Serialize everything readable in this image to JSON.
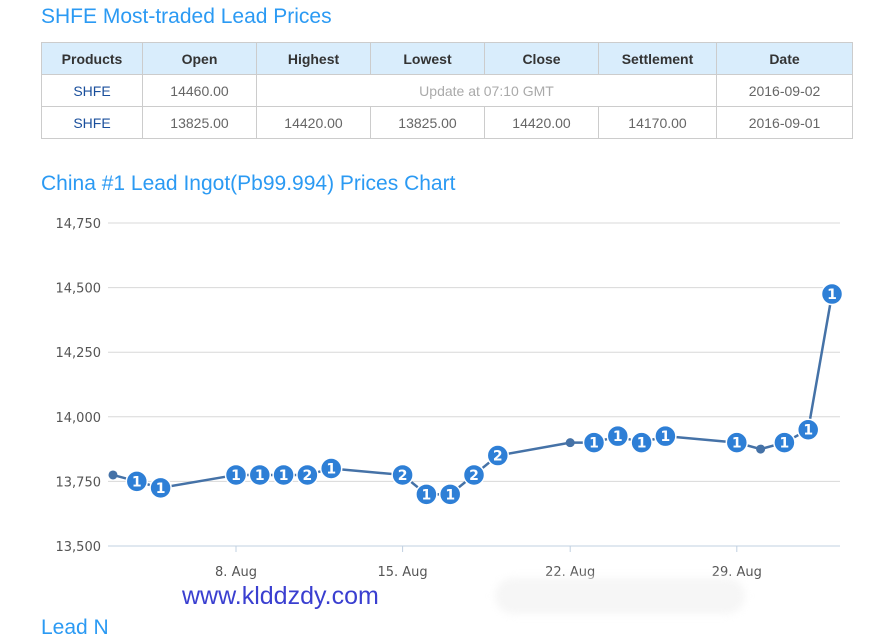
{
  "title1": "SHFE Most-traded Lead Prices",
  "table": {
    "headers": [
      "Products",
      "Open",
      "Highest",
      "Lowest",
      "Close",
      "Settlement",
      "Date"
    ],
    "rows": [
      {
        "product": "SHFE",
        "open": "14460.00",
        "note": "Update at 07:10 GMT",
        "date": "2016-09-02"
      },
      {
        "product": "SHFE",
        "open": "13825.00",
        "highest": "14420.00",
        "lowest": "13825.00",
        "close": "14420.00",
        "settlement": "14170.00",
        "date": "2016-09-01"
      }
    ]
  },
  "title2": "China #1 Lead Ingot(Pb99.994) Prices Chart",
  "watermark": "www.klddzdy.com",
  "next_heading_partial": "Lead N",
  "chart_data": {
    "type": "line",
    "ylim": [
      13500,
      14750
    ],
    "yticks": [
      "13,500",
      "13,750",
      "14,000",
      "14,250",
      "14,500",
      "14,750"
    ],
    "ytick_values": [
      13500,
      13750,
      14000,
      14250,
      14500,
      14750
    ],
    "xticks": [
      {
        "label": "8. Aug",
        "day": 8
      },
      {
        "label": "15. Aug",
        "day": 15
      },
      {
        "label": "22. Aug",
        "day": 22
      },
      {
        "label": "29. Aug",
        "day": 29
      }
    ],
    "grid": true,
    "line_color": "#4572a7",
    "flag_color": "#2e7fd6",
    "points": [
      {
        "date": "Aug 3",
        "day": 3,
        "value": 13775,
        "flag": ""
      },
      {
        "date": "Aug 4",
        "day": 4,
        "value": 13750,
        "flag": "1"
      },
      {
        "date": "Aug 5",
        "day": 5,
        "value": 13725,
        "flag": "1"
      },
      {
        "date": "Aug 8",
        "day": 8,
        "value": 13775,
        "flag": "1"
      },
      {
        "date": "Aug 9",
        "day": 9,
        "value": 13775,
        "flag": "1"
      },
      {
        "date": "Aug 10",
        "day": 10,
        "value": 13775,
        "flag": "1"
      },
      {
        "date": "Aug 11",
        "day": 11,
        "value": 13775,
        "flag": "2"
      },
      {
        "date": "Aug 12",
        "day": 12,
        "value": 13800,
        "flag": "1"
      },
      {
        "date": "Aug 15",
        "day": 15,
        "value": 13775,
        "flag": "2"
      },
      {
        "date": "Aug 16",
        "day": 16,
        "value": 13700,
        "flag": "1"
      },
      {
        "date": "Aug 17",
        "day": 17,
        "value": 13700,
        "flag": "1"
      },
      {
        "date": "Aug 18",
        "day": 18,
        "value": 13775,
        "flag": "2"
      },
      {
        "date": "Aug 19",
        "day": 19,
        "value": 13850,
        "flag": "2"
      },
      {
        "date": "Aug 22",
        "day": 22,
        "value": 13900,
        "flag": ""
      },
      {
        "date": "Aug 23",
        "day": 23,
        "value": 13900,
        "flag": "1"
      },
      {
        "date": "Aug 24",
        "day": 24,
        "value": 13925,
        "flag": "1"
      },
      {
        "date": "Aug 25",
        "day": 25,
        "value": 13900,
        "flag": "1"
      },
      {
        "date": "Aug 26",
        "day": 26,
        "value": 13925,
        "flag": "1"
      },
      {
        "date": "Aug 29",
        "day": 29,
        "value": 13900,
        "flag": "1"
      },
      {
        "date": "Aug 30",
        "day": 30,
        "value": 13875,
        "flag": ""
      },
      {
        "date": "Aug 31",
        "day": 31,
        "value": 13900,
        "flag": "1"
      },
      {
        "date": "Sep 1",
        "day": 32,
        "value": 13950,
        "flag": "1"
      },
      {
        "date": "Sep 2",
        "day": 33,
        "value": 14475,
        "flag": "1"
      }
    ]
  }
}
